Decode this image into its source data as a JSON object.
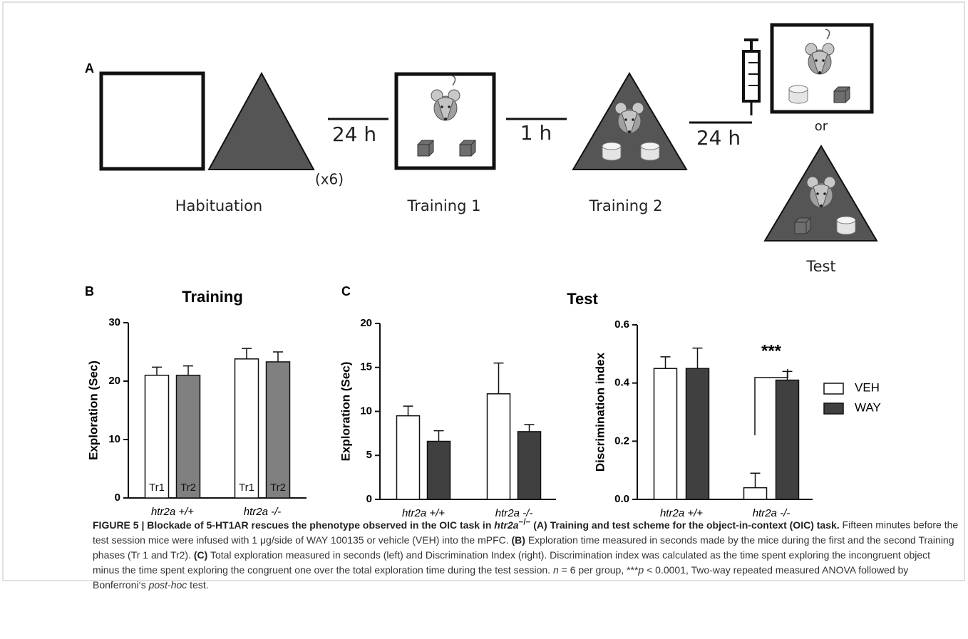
{
  "panel_labels": [
    "A",
    "B",
    "C"
  ],
  "scheme": {
    "stages": [
      "Habituation",
      "Training 1",
      "Training 2",
      "Test"
    ],
    "intervals": [
      "24 h",
      "1 h",
      "24 h"
    ],
    "repeat": "(x6)",
    "or": "or"
  },
  "chart_data": [
    {
      "type": "bar",
      "title": "Training",
      "y_label": "Exploration (Sec)",
      "categories": [
        "htr2a +/+",
        "htr2a -/-"
      ],
      "series": [
        {
          "name": "Tr1",
          "color": "#ffffff",
          "values": [
            21,
            23.8
          ],
          "errors": [
            1.4,
            1.8
          ]
        },
        {
          "name": "Tr2",
          "color": "#808080",
          "values": [
            21,
            23.3
          ],
          "errors": [
            1.6,
            1.7
          ]
        }
      ],
      "ylim": [
        0,
        30
      ],
      "yticks": [
        0,
        10,
        20,
        30
      ]
    },
    {
      "type": "bar",
      "title": "Test",
      "y_label": "Exploration (Sec)",
      "categories": [
        "htr2a +/+",
        "htr2a -/-"
      ],
      "series": [
        {
          "color": "#ffffff",
          "values": [
            9.5,
            12
          ],
          "errors": [
            1.1,
            3.5
          ]
        },
        {
          "color": "#404040",
          "values": [
            6.6,
            7.7
          ],
          "errors": [
            1.2,
            0.8
          ]
        }
      ],
      "ylim": [
        0,
        20
      ],
      "yticks": [
        0,
        5,
        10,
        15,
        20
      ]
    },
    {
      "type": "bar",
      "y_label": "Discrimination index",
      "categories": [
        "htr2a +/+",
        "htr2a -/-"
      ],
      "series": [
        {
          "name": "VEH",
          "color": "#ffffff",
          "values": [
            0.45,
            0.04
          ],
          "errors": [
            0.04,
            0.05
          ]
        },
        {
          "name": "WAY",
          "color": "#404040",
          "values": [
            0.45,
            0.41
          ],
          "errors": [
            0.07,
            0.03
          ]
        }
      ],
      "ylim": [
        0,
        0.6
      ],
      "yticks": [
        {
          "value": 0,
          "label": "0.0"
        },
        0.2,
        0.4,
        0.6
      ],
      "legend": "right",
      "annotations": [
        "***"
      ]
    }
  ],
  "caption": [
    "FIGURE 5 | Blockade of 5-HT1AR rescues the phenotype observed in the OIC task in ",
    "htr2a",
    "−/−",
    " (A) Training and test scheme for the object-in-context (OIC) task.",
    " Fifteen minutes before the test session mice were infused with 1 μg/side of WAY 100135 or vehicle (VEH) into the mPFC. ",
    "(B)",
    " Exploration time measured in seconds made by the mice during the first and the second Training phases (Tr 1 and Tr2). ",
    "(C)",
    " Total exploration measured in seconds (left) and Discrimination Index (right). Discrimination index was calculated as the time spent exploring the incongruent object minus the time spent exploring the congruent one over the total exploration time during the test session. ",
    "n",
    " = 6 per group, ***",
    "p",
    " < 0.0001, Two-way repeated measured ANOVA followed by Bonferroni‘s ",
    "post-hoc",
    " test."
  ]
}
